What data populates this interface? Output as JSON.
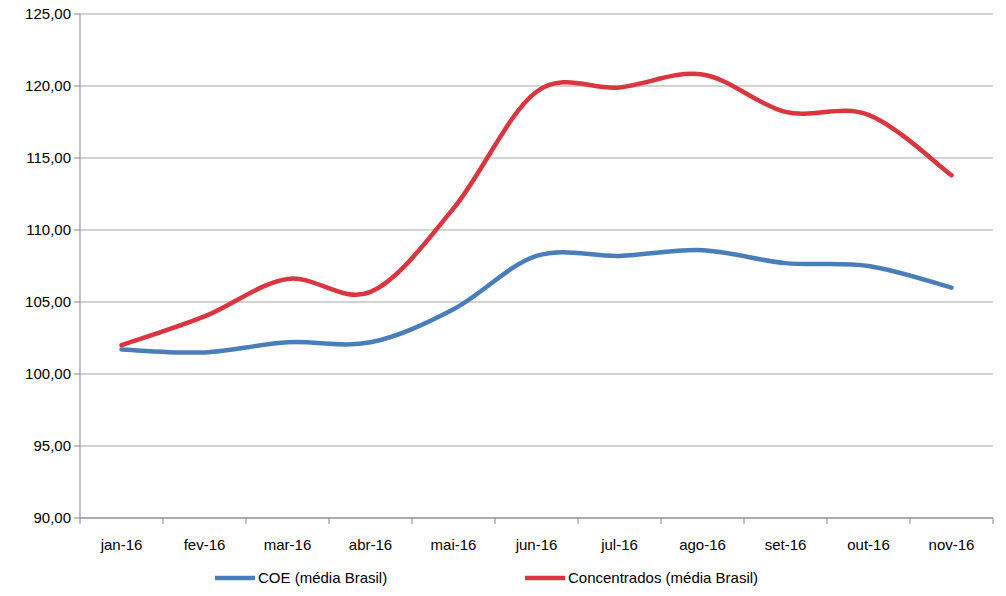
{
  "chart_data": {
    "type": "line",
    "categories": [
      "jan-16",
      "fev-16",
      "mar-16",
      "abr-16",
      "mai-16",
      "jun-16",
      "jul-16",
      "ago-16",
      "set-16",
      "out-16",
      "nov-16"
    ],
    "series": [
      {
        "name": "COE (média Brasil)",
        "color": "#4a7ebb",
        "values": [
          101.7,
          101.5,
          102.2,
          102.2,
          104.5,
          108.2,
          108.2,
          108.6,
          107.7,
          107.5,
          106.0
        ]
      },
      {
        "name": "Concentrados (média Brasil)",
        "color": "#d9363f",
        "values": [
          102.0,
          104.0,
          106.6,
          105.7,
          111.5,
          119.6,
          119.9,
          120.8,
          118.2,
          118.0,
          113.8
        ]
      }
    ],
    "ylim": [
      90,
      125
    ],
    "yticks": [
      {
        "value": 90,
        "label": "90,00"
      },
      {
        "value": 95,
        "label": "95,00"
      },
      {
        "value": 100,
        "label": "100,00"
      },
      {
        "value": 105,
        "label": "105,00"
      },
      {
        "value": 110,
        "label": "110,00"
      },
      {
        "value": 115,
        "label": "115,00"
      },
      {
        "value": 120,
        "label": "120,00"
      },
      {
        "value": 125,
        "label": "125,00"
      }
    ],
    "grid": true,
    "legend": "bottom"
  }
}
